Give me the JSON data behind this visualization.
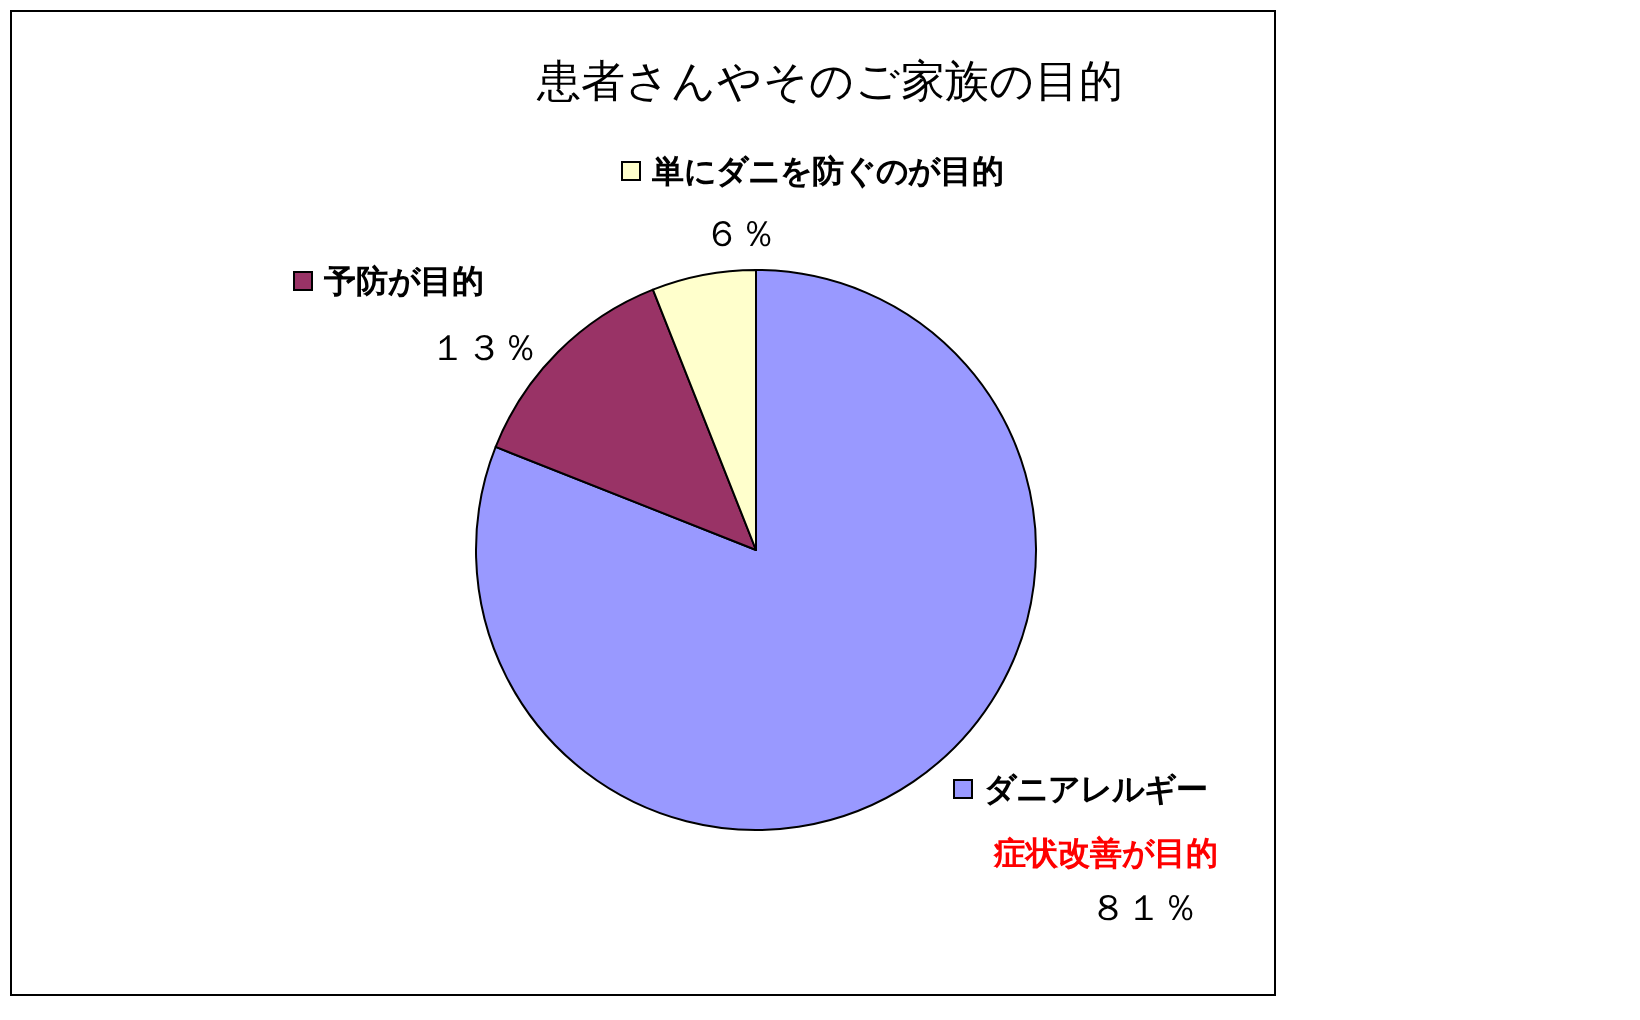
{
  "chart_data": {
    "type": "pie",
    "title": "患者さんやそのご家族の目的",
    "categories": [
      "ダニアレルギー",
      "予防が目的",
      "単にダニを防ぐのが目的"
    ],
    "values": [
      81,
      13,
      6
    ],
    "colors": [
      "#9999ff",
      "#993366",
      "#ffffcc"
    ],
    "value_labels": [
      "８１％",
      "１３％",
      "６％"
    ],
    "annotations": [
      "症状改善が目的"
    ],
    "legend": "right"
  }
}
